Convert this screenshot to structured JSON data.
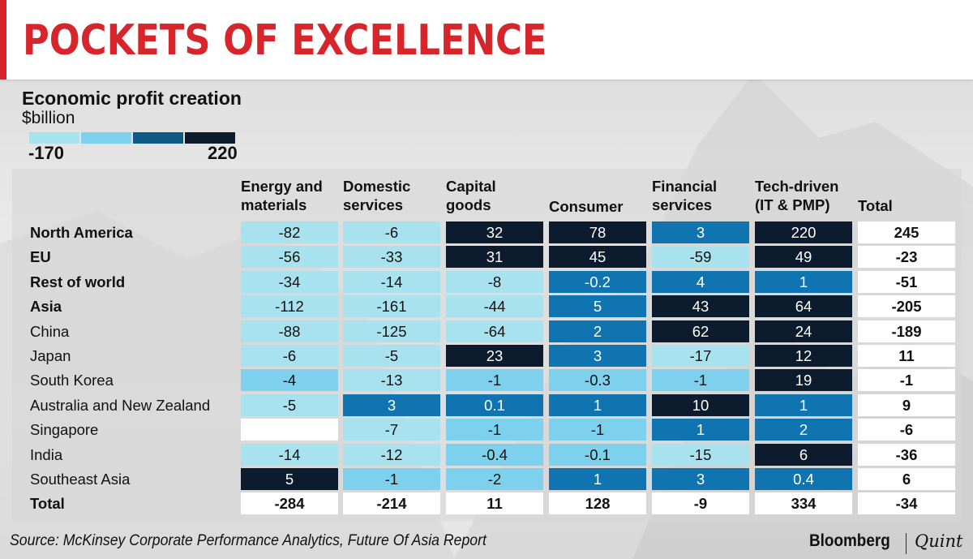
{
  "title": "POCKETS OF EXCELLENCE",
  "legend": {
    "title": "Economic profit creation",
    "unit": "$billion",
    "min_label": "-170",
    "max_label": "220",
    "colors": [
      "#a9e2ef",
      "#7ed1ed",
      "#0e5a86",
      "#0d1b2e"
    ]
  },
  "source": "Source: McKinsey Corporate Performance Analytics, Future Of Asia Report",
  "brand": {
    "left": "Bloomberg",
    "right": "Quint"
  },
  "chart_data": {
    "type": "table",
    "title": "Economic profit creation",
    "unit": "$billion",
    "color_scale": {
      "min": -170,
      "max": 220
    },
    "columns": [
      {
        "lines": [
          "Energy and",
          "materials"
        ]
      },
      {
        "lines": [
          "Domestic",
          "services"
        ]
      },
      {
        "lines": [
          "Capital",
          "goods"
        ]
      },
      {
        "lines": [
          "Consumer"
        ]
      },
      {
        "lines": [
          "Financial",
          "services"
        ]
      },
      {
        "lines": [
          "Tech-driven",
          "(IT & PMP)"
        ]
      }
    ],
    "total_label": "Total",
    "rows": [
      {
        "label": "North America",
        "bold": true,
        "cells": [
          {
            "v": "-82",
            "c": "#a9e2ef"
          },
          {
            "v": "-6",
            "c": "#a9e2ef"
          },
          {
            "v": "32",
            "c": "#0d1b2e"
          },
          {
            "v": "78",
            "c": "#0d1b2e"
          },
          {
            "v": "3",
            "c": "#0f74b0"
          },
          {
            "v": "220",
            "c": "#0d1b2e"
          }
        ],
        "total": "245"
      },
      {
        "label": "EU",
        "bold": true,
        "cells": [
          {
            "v": "-56",
            "c": "#a9e2ef"
          },
          {
            "v": "-33",
            "c": "#a9e2ef"
          },
          {
            "v": "31",
            "c": "#0d1b2e"
          },
          {
            "v": "45",
            "c": "#0d1b2e"
          },
          {
            "v": "-59",
            "c": "#a9e2ef"
          },
          {
            "v": "49",
            "c": "#0d1b2e"
          }
        ],
        "total": "-23"
      },
      {
        "label": "Rest of world",
        "bold": true,
        "cells": [
          {
            "v": "-34",
            "c": "#a9e2ef"
          },
          {
            "v": "-14",
            "c": "#a9e2ef"
          },
          {
            "v": "-8",
            "c": "#a9e2ef"
          },
          {
            "v": "-0.2",
            "c": "#0f74b0"
          },
          {
            "v": "4",
            "c": "#0f74b0"
          },
          {
            "v": "1",
            "c": "#0f74b0"
          }
        ],
        "total": "-51"
      },
      {
        "label": "Asia",
        "bold": true,
        "cells": [
          {
            "v": "-112",
            "c": "#a9e2ef"
          },
          {
            "v": "-161",
            "c": "#a9e2ef"
          },
          {
            "v": "-44",
            "c": "#a9e2ef"
          },
          {
            "v": "5",
            "c": "#0f74b0"
          },
          {
            "v": "43",
            "c": "#0d1b2e"
          },
          {
            "v": "64",
            "c": "#0d1b2e"
          }
        ],
        "total": "-205"
      },
      {
        "label": "China",
        "bold": false,
        "cells": [
          {
            "v": "-88",
            "c": "#a9e2ef"
          },
          {
            "v": "-125",
            "c": "#a9e2ef"
          },
          {
            "v": "-64",
            "c": "#a9e2ef"
          },
          {
            "v": "2",
            "c": "#0f74b0"
          },
          {
            "v": "62",
            "c": "#0d1b2e"
          },
          {
            "v": "24",
            "c": "#0d1b2e"
          }
        ],
        "total": "-189"
      },
      {
        "label": "Japan",
        "bold": false,
        "cells": [
          {
            "v": "-6",
            "c": "#a9e2ef"
          },
          {
            "v": "-5",
            "c": "#a9e2ef"
          },
          {
            "v": "23",
            "c": "#0d1b2e"
          },
          {
            "v": "3",
            "c": "#0f74b0"
          },
          {
            "v": "-17",
            "c": "#a9e2ef"
          },
          {
            "v": "12",
            "c": "#0d1b2e"
          }
        ],
        "total": "11"
      },
      {
        "label": "South Korea",
        "bold": false,
        "cells": [
          {
            "v": "-4",
            "c": "#7ed1ed"
          },
          {
            "v": "-13",
            "c": "#a9e2ef"
          },
          {
            "v": "-1",
            "c": "#7ed1ed"
          },
          {
            "v": "-0.3",
            "c": "#7ed1ed"
          },
          {
            "v": "-1",
            "c": "#7ed1ed"
          },
          {
            "v": "19",
            "c": "#0d1b2e"
          }
        ],
        "total": "-1"
      },
      {
        "label": "Australia and New Zealand",
        "bold": false,
        "cells": [
          {
            "v": "-5",
            "c": "#a9e2ef"
          },
          {
            "v": "3",
            "c": "#0f74b0"
          },
          {
            "v": "0.1",
            "c": "#0f74b0"
          },
          {
            "v": "1",
            "c": "#0f74b0"
          },
          {
            "v": "10",
            "c": "#0d1b2e"
          },
          {
            "v": "1",
            "c": "#0f74b0"
          }
        ],
        "total": "9"
      },
      {
        "label": "Singapore",
        "bold": false,
        "cells": [
          {
            "v": "",
            "c": "#ffffff"
          },
          {
            "v": "-7",
            "c": "#a9e2ef"
          },
          {
            "v": "-1",
            "c": "#7ed1ed"
          },
          {
            "v": "-1",
            "c": "#7ed1ed"
          },
          {
            "v": "1",
            "c": "#0f74b0"
          },
          {
            "v": "2",
            "c": "#0f74b0"
          }
        ],
        "total": "-6"
      },
      {
        "label": "India",
        "bold": false,
        "cells": [
          {
            "v": "-14",
            "c": "#a9e2ef"
          },
          {
            "v": "-12",
            "c": "#a9e2ef"
          },
          {
            "v": "-0.4",
            "c": "#7ed1ed"
          },
          {
            "v": "-0.1",
            "c": "#7ed1ed"
          },
          {
            "v": "-15",
            "c": "#a9e2ef"
          },
          {
            "v": "6",
            "c": "#0d1b2e"
          }
        ],
        "total": "-36"
      },
      {
        "label": "Southeast Asia",
        "bold": false,
        "cells": [
          {
            "v": "5",
            "c": "#0d1b2e"
          },
          {
            "v": "-1",
            "c": "#7ed1ed"
          },
          {
            "v": "-2",
            "c": "#7ed1ed"
          },
          {
            "v": "1",
            "c": "#0f74b0"
          },
          {
            "v": "3",
            "c": "#0f74b0"
          },
          {
            "v": "0.4",
            "c": "#0f74b0"
          }
        ],
        "total": "6"
      },
      {
        "label": "Total",
        "bold": true,
        "is_total": true,
        "cells": [
          {
            "v": "-284",
            "c": "#ffffff"
          },
          {
            "v": "-214",
            "c": "#ffffff"
          },
          {
            "v": "11",
            "c": "#ffffff"
          },
          {
            "v": "128",
            "c": "#ffffff"
          },
          {
            "v": "-9",
            "c": "#ffffff"
          },
          {
            "v": "334",
            "c": "#ffffff"
          }
        ],
        "total": "-34"
      }
    ]
  }
}
